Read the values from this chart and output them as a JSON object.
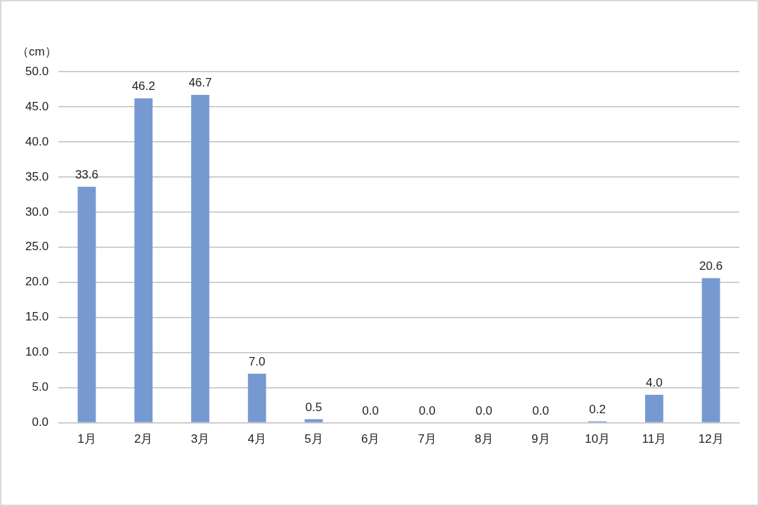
{
  "chart_data": {
    "type": "bar",
    "ylabel": "（cm）",
    "categories": [
      "1月",
      "2月",
      "3月",
      "4月",
      "5月",
      "6月",
      "7月",
      "8月",
      "9月",
      "10月",
      "11月",
      "12月"
    ],
    "series": [
      {
        "color": "#7799d1",
        "values": [
          33.6,
          46.2,
          46.7,
          7.0,
          0.5,
          0.0,
          0.0,
          0.0,
          0.0,
          0.2,
          4.0,
          20.6
        ],
        "value_labels": [
          "33.6",
          "46.2",
          "46.7",
          "7.0",
          "0.5",
          "0.0",
          "0.0",
          "0.0",
          "0.0",
          "0.2",
          "4.0",
          "20.6"
        ]
      }
    ],
    "ylim": [
      0,
      50
    ],
    "yticks": [
      {
        "value": 0,
        "label": "0.0"
      },
      {
        "value": 5,
        "label": "5.0"
      },
      {
        "value": 10,
        "label": "10.0"
      },
      {
        "value": 15,
        "label": "15.0"
      },
      {
        "value": 20,
        "label": "20.0"
      },
      {
        "value": 25,
        "label": "25.0"
      },
      {
        "value": 30,
        "label": "30.0"
      },
      {
        "value": 35,
        "label": "35.0"
      },
      {
        "value": 40,
        "label": "40.0"
      },
      {
        "value": 45,
        "label": "45.0"
      },
      {
        "value": 50,
        "label": "50.0"
      }
    ],
    "grid": "y",
    "legend": false
  }
}
